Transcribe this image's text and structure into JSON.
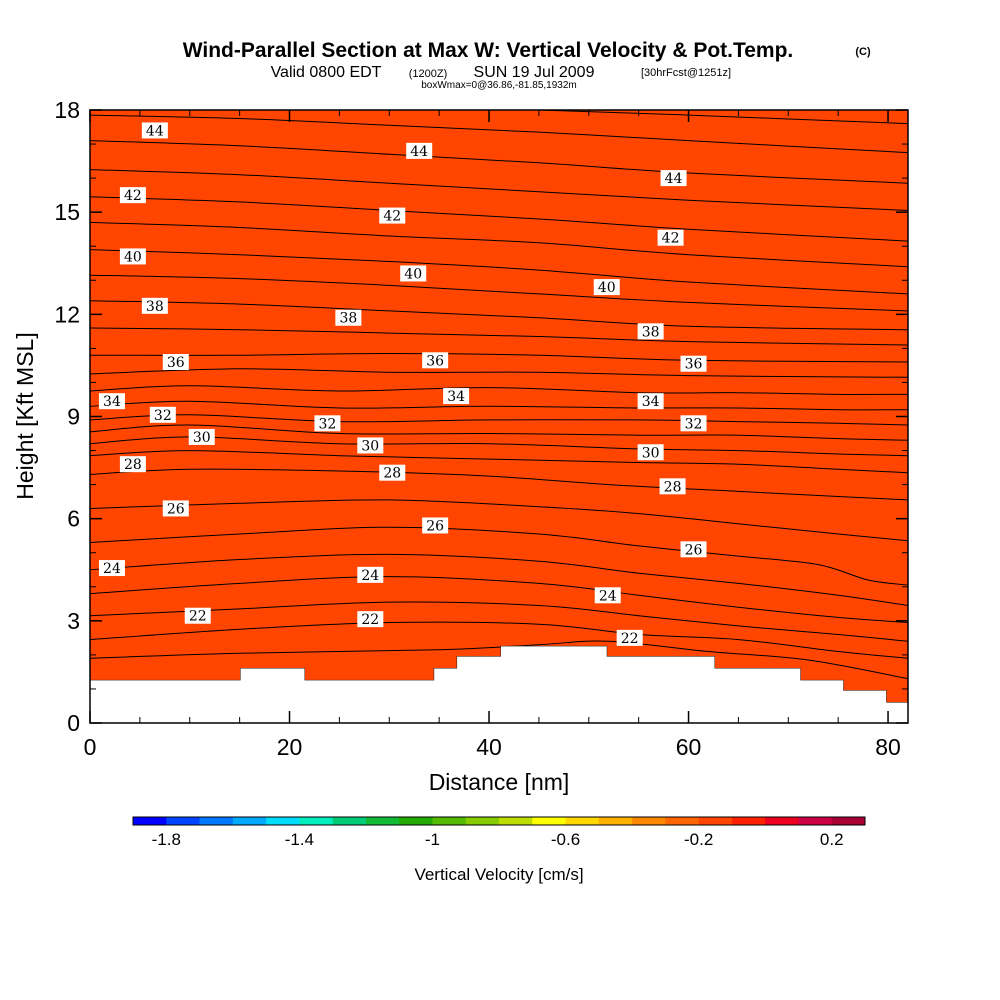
{
  "header": {
    "title_main": "Wind-Parallel Section at Max W: Vertical Velocity & Pot.Temp.",
    "title_copyright": "(C)",
    "valid_prefix": "Valid 0800 EDT",
    "valid_utc": "(1200Z)",
    "valid_date": "SUN 19 Jul 2009",
    "forecast": "[30hrFcst@1251z]",
    "box_info": "boxWmax=0@36.86,-81.85,1932m"
  },
  "colors": {
    "fill": "#ff4500",
    "contour": "#000000",
    "terrain": "#ffffff",
    "frame": "#000000"
  },
  "colorbar": {
    "label": "Vertical Velocity [cm/s]",
    "tick_labels": [
      "-1.8",
      "-1.4",
      "-1",
      "-0.6",
      "-0.2",
      "0.2"
    ],
    "tick_values": [
      -1.8,
      -1.4,
      -1.0,
      -0.6,
      -0.2,
      0.2
    ],
    "min": -1.9,
    "max": 0.3,
    "colors": [
      "#0000ff",
      "#0044ff",
      "#0077ff",
      "#00aaff",
      "#00ddff",
      "#00eebb",
      "#00cc77",
      "#11bb33",
      "#22aa00",
      "#55bb00",
      "#88cc00",
      "#bbdd00",
      "#ffff00",
      "#ffd800",
      "#ffb000",
      "#ff8800",
      "#ff6600",
      "#ff4500",
      "#ff2200",
      "#ee0022",
      "#cc0044",
      "#aa0033"
    ]
  },
  "chart_data": {
    "type": "heatmap",
    "title": "Wind-Parallel Section at Max W: Vertical Velocity & Pot.Temp.",
    "xlabel": "Distance [nm]",
    "ylabel": "Height [Kft MSL]",
    "xlim": [
      0,
      82
    ],
    "ylim": [
      0,
      18
    ],
    "x_ticks": [
      0,
      20,
      40,
      60,
      80
    ],
    "x_tick_labels": [
      "0",
      "20",
      "40",
      "60",
      "80"
    ],
    "y_ticks": [
      0,
      3,
      6,
      9,
      12,
      15,
      18
    ],
    "y_tick_labels": [
      "0",
      "3",
      "6",
      "9",
      "12",
      "15",
      "18"
    ],
    "field_value_cm_s": -0.1,
    "terrain": [
      [
        0,
        1.25
      ],
      [
        15.1,
        1.25
      ],
      [
        15.1,
        1.6
      ],
      [
        21.5,
        1.6
      ],
      [
        21.5,
        1.25
      ],
      [
        34.5,
        1.25
      ],
      [
        34.5,
        1.6
      ],
      [
        36.8,
        1.6
      ],
      [
        36.8,
        1.95
      ],
      [
        41.2,
        1.95
      ],
      [
        41.2,
        2.25
      ],
      [
        51.8,
        2.25
      ],
      [
        51.8,
        1.95
      ],
      [
        62.6,
        1.95
      ],
      [
        62.6,
        1.6
      ],
      [
        71.2,
        1.6
      ],
      [
        71.2,
        1.25
      ],
      [
        75.5,
        1.25
      ],
      [
        75.5,
        0.95
      ],
      [
        79.8,
        0.95
      ],
      [
        79.8,
        0.6
      ],
      [
        82,
        0.6
      ]
    ],
    "contour_interval": 1,
    "theta_contours": [
      {
        "level": 21,
        "pts": [
          [
            0,
            1.9
          ],
          [
            15,
            2.05
          ],
          [
            35,
            2.15
          ],
          [
            45,
            2.3
          ],
          [
            52,
            2.4
          ],
          [
            62,
            2.1
          ],
          [
            72,
            1.85
          ],
          [
            82,
            1.3
          ]
        ]
      },
      {
        "level": 22,
        "pts": [
          [
            0,
            2.45
          ],
          [
            15,
            2.75
          ],
          [
            30,
            2.95
          ],
          [
            45,
            2.9
          ],
          [
            55,
            2.6
          ],
          [
            65,
            2.45
          ],
          [
            75,
            2.1
          ],
          [
            82,
            1.9
          ]
        ]
      },
      {
        "level": 23,
        "pts": [
          [
            0,
            3.15
          ],
          [
            15,
            3.35
          ],
          [
            30,
            3.55
          ],
          [
            45,
            3.45
          ],
          [
            55,
            3.15
          ],
          [
            65,
            2.85
          ],
          [
            75,
            2.6
          ],
          [
            82,
            2.4
          ]
        ]
      },
      {
        "level": 24,
        "pts": [
          [
            0,
            3.8
          ],
          [
            15,
            4.1
          ],
          [
            30,
            4.3
          ],
          [
            45,
            4.1
          ],
          [
            55,
            3.75
          ],
          [
            65,
            3.4
          ],
          [
            75,
            3.1
          ],
          [
            82,
            2.95
          ]
        ]
      },
      {
        "level": 25,
        "pts": [
          [
            0,
            4.5
          ],
          [
            15,
            4.8
          ],
          [
            30,
            4.95
          ],
          [
            45,
            4.75
          ],
          [
            55,
            4.4
          ],
          [
            65,
            4.1
          ],
          [
            75,
            3.75
          ],
          [
            82,
            3.45
          ]
        ]
      },
      {
        "level": 26,
        "pts": [
          [
            0,
            5.3
          ],
          [
            15,
            5.55
          ],
          [
            30,
            5.75
          ],
          [
            45,
            5.55
          ],
          [
            55,
            5.2
          ],
          [
            65,
            4.9
          ],
          [
            73,
            4.65
          ],
          [
            78,
            4.2
          ],
          [
            82,
            4.05
          ]
        ]
      },
      {
        "level": 27,
        "pts": [
          [
            0,
            6.3
          ],
          [
            15,
            6.45
          ],
          [
            30,
            6.55
          ],
          [
            45,
            6.35
          ],
          [
            55,
            6.15
          ],
          [
            65,
            5.85
          ],
          [
            75,
            5.55
          ],
          [
            82,
            5.35
          ]
        ]
      },
      {
        "level": 28,
        "pts": [
          [
            0,
            7.3
          ],
          [
            10,
            7.45
          ],
          [
            25,
            7.4
          ],
          [
            40,
            7.25
          ],
          [
            52,
            7.0
          ],
          [
            65,
            6.8
          ],
          [
            75,
            6.65
          ],
          [
            82,
            6.55
          ]
        ]
      },
      {
        "level": 29,
        "pts": [
          [
            0,
            7.85
          ],
          [
            10,
            8.0
          ],
          [
            25,
            7.85
          ],
          [
            40,
            7.75
          ],
          [
            55,
            7.65
          ],
          [
            65,
            7.6
          ],
          [
            75,
            7.45
          ],
          [
            82,
            7.35
          ]
        ]
      },
      {
        "level": 30,
        "pts": [
          [
            0,
            8.2
          ],
          [
            10,
            8.4
          ],
          [
            25,
            8.2
          ],
          [
            40,
            8.2
          ],
          [
            55,
            8.05
          ],
          [
            65,
            8.0
          ],
          [
            75,
            7.9
          ],
          [
            82,
            7.85
          ]
        ]
      },
      {
        "level": 31,
        "pts": [
          [
            0,
            8.55
          ],
          [
            10,
            8.75
          ],
          [
            25,
            8.5
          ],
          [
            40,
            8.5
          ],
          [
            55,
            8.45
          ],
          [
            65,
            8.45
          ],
          [
            75,
            8.35
          ],
          [
            82,
            8.3
          ]
        ]
      },
      {
        "level": 32,
        "pts": [
          [
            0,
            8.9
          ],
          [
            10,
            9.05
          ],
          [
            25,
            8.85
          ],
          [
            40,
            8.9
          ],
          [
            55,
            8.9
          ],
          [
            65,
            8.85
          ],
          [
            75,
            8.8
          ],
          [
            82,
            8.75
          ]
        ]
      },
      {
        "level": 33,
        "pts": [
          [
            0,
            9.3
          ],
          [
            10,
            9.45
          ],
          [
            25,
            9.25
          ],
          [
            40,
            9.3
          ],
          [
            55,
            9.25
          ],
          [
            65,
            9.25
          ],
          [
            75,
            9.2
          ],
          [
            82,
            9.2
          ]
        ]
      },
      {
        "level": 34,
        "pts": [
          [
            0,
            9.75
          ],
          [
            10,
            9.9
          ],
          [
            25,
            9.75
          ],
          [
            40,
            9.85
          ],
          [
            55,
            9.7
          ],
          [
            65,
            9.7
          ],
          [
            75,
            9.65
          ],
          [
            82,
            9.65
          ]
        ]
      },
      {
        "level": 35,
        "pts": [
          [
            0,
            10.25
          ],
          [
            15,
            10.4
          ],
          [
            30,
            10.3
          ],
          [
            45,
            10.3
          ],
          [
            60,
            10.2
          ],
          [
            82,
            10.15
          ]
        ]
      },
      {
        "level": 36,
        "pts": [
          [
            0,
            10.8
          ],
          [
            15,
            10.8
          ],
          [
            30,
            10.85
          ],
          [
            45,
            10.8
          ],
          [
            60,
            10.65
          ],
          [
            82,
            10.6
          ]
        ]
      },
      {
        "level": 37,
        "pts": [
          [
            0,
            11.6
          ],
          [
            15,
            11.55
          ],
          [
            30,
            11.45
          ],
          [
            45,
            11.35
          ],
          [
            60,
            11.2
          ],
          [
            82,
            11.1
          ]
        ]
      },
      {
        "level": 38,
        "pts": [
          [
            0,
            12.4
          ],
          [
            15,
            12.3
          ],
          [
            30,
            12.1
          ],
          [
            45,
            11.9
          ],
          [
            60,
            11.65
          ],
          [
            82,
            11.55
          ]
        ]
      },
      {
        "level": 39,
        "pts": [
          [
            0,
            13.15
          ],
          [
            15,
            13.05
          ],
          [
            30,
            12.85
          ],
          [
            45,
            12.6
          ],
          [
            60,
            12.35
          ],
          [
            82,
            12.1
          ]
        ]
      },
      {
        "level": 40,
        "pts": [
          [
            0,
            13.9
          ],
          [
            15,
            13.75
          ],
          [
            30,
            13.55
          ],
          [
            45,
            13.3
          ],
          [
            60,
            12.95
          ],
          [
            82,
            12.6
          ]
        ]
      },
      {
        "level": 41,
        "pts": [
          [
            0,
            14.7
          ],
          [
            15,
            14.55
          ],
          [
            30,
            14.3
          ],
          [
            45,
            14.1
          ],
          [
            60,
            13.75
          ],
          [
            82,
            13.4
          ]
        ]
      },
      {
        "level": 42,
        "pts": [
          [
            0,
            15.45
          ],
          [
            15,
            15.3
          ],
          [
            30,
            15.05
          ],
          [
            45,
            14.8
          ],
          [
            60,
            14.5
          ],
          [
            82,
            14.15
          ]
        ]
      },
      {
        "level": 43,
        "pts": [
          [
            0,
            16.25
          ],
          [
            15,
            16.1
          ],
          [
            30,
            15.85
          ],
          [
            45,
            15.6
          ],
          [
            60,
            15.35
          ],
          [
            82,
            15.05
          ]
        ]
      },
      {
        "level": 44,
        "pts": [
          [
            0,
            17.1
          ],
          [
            15,
            16.95
          ],
          [
            30,
            16.7
          ],
          [
            45,
            16.45
          ],
          [
            60,
            16.15
          ],
          [
            82,
            15.85
          ]
        ]
      },
      {
        "level": 45,
        "pts": [
          [
            0,
            17.85
          ],
          [
            15,
            17.75
          ],
          [
            30,
            17.55
          ],
          [
            45,
            17.35
          ],
          [
            60,
            17.1
          ],
          [
            82,
            16.75
          ]
        ]
      },
      {
        "level": 46,
        "pts": [
          [
            45,
            18.0
          ],
          [
            60,
            17.85
          ],
          [
            82,
            17.6
          ]
        ]
      }
    ],
    "contour_labels": [
      {
        "text": "44",
        "x": 6.5,
        "y": 17.4
      },
      {
        "text": "44",
        "x": 33,
        "y": 16.8
      },
      {
        "text": "44",
        "x": 58.5,
        "y": 16.0
      },
      {
        "text": "42",
        "x": 4.3,
        "y": 15.5
      },
      {
        "text": "42",
        "x": 30.3,
        "y": 14.9
      },
      {
        "text": "42",
        "x": 58.2,
        "y": 14.25
      },
      {
        "text": "40",
        "x": 4.3,
        "y": 13.7
      },
      {
        "text": "40",
        "x": 32.4,
        "y": 13.2
      },
      {
        "text": "40",
        "x": 51.8,
        "y": 12.8
      },
      {
        "text": "38",
        "x": 6.5,
        "y": 12.25
      },
      {
        "text": "38",
        "x": 25.9,
        "y": 11.9
      },
      {
        "text": "38",
        "x": 56.2,
        "y": 11.5
      },
      {
        "text": "36",
        "x": 8.6,
        "y": 10.6
      },
      {
        "text": "36",
        "x": 34.6,
        "y": 10.65
      },
      {
        "text": "36",
        "x": 60.5,
        "y": 10.55
      },
      {
        "text": "34",
        "x": 2.2,
        "y": 9.45
      },
      {
        "text": "34",
        "x": 36.7,
        "y": 9.6
      },
      {
        "text": "34",
        "x": 56.2,
        "y": 9.45
      },
      {
        "text": "32",
        "x": 7.3,
        "y": 9.05
      },
      {
        "text": "32",
        "x": 23.8,
        "y": 8.8
      },
      {
        "text": "32",
        "x": 60.5,
        "y": 8.8
      },
      {
        "text": "30",
        "x": 11.2,
        "y": 8.4
      },
      {
        "text": "30",
        "x": 28.1,
        "y": 8.15
      },
      {
        "text": "30",
        "x": 56.2,
        "y": 7.95
      },
      {
        "text": "28",
        "x": 4.3,
        "y": 7.6
      },
      {
        "text": "28",
        "x": 30.3,
        "y": 7.35
      },
      {
        "text": "28",
        "x": 58.4,
        "y": 6.95
      },
      {
        "text": "26",
        "x": 8.6,
        "y": 6.3
      },
      {
        "text": "26",
        "x": 34.6,
        "y": 5.8
      },
      {
        "text": "26",
        "x": 60.5,
        "y": 5.1
      },
      {
        "text": "24",
        "x": 2.2,
        "y": 4.55
      },
      {
        "text": "24",
        "x": 28.1,
        "y": 4.35
      },
      {
        "text": "24",
        "x": 51.9,
        "y": 3.75
      },
      {
        "text": "22",
        "x": 10.8,
        "y": 3.15
      },
      {
        "text": "22",
        "x": 28.1,
        "y": 3.05
      },
      {
        "text": "22",
        "x": 54.1,
        "y": 2.5
      }
    ]
  }
}
